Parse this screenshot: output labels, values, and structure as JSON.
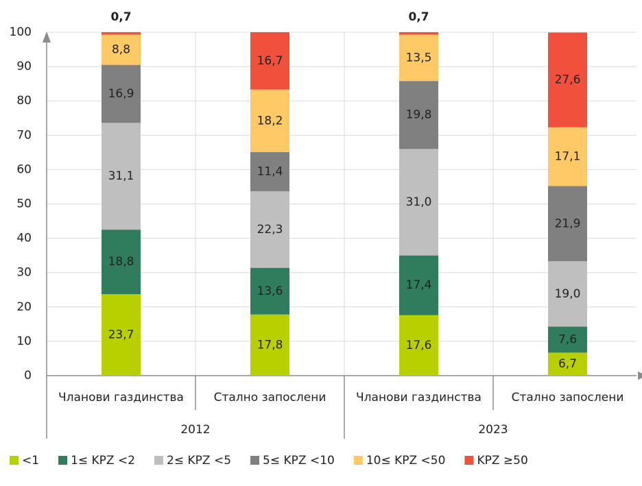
{
  "chart_data": {
    "type": "stacked_bar",
    "categories": [
      "Чланови газдинства",
      "Стално запослени",
      "Чланови газдинства",
      "Стално запослени"
    ],
    "groups": [
      "2012",
      "2023"
    ],
    "ylim": [
      0,
      100
    ],
    "yticks": [
      0,
      10,
      20,
      30,
      40,
      50,
      60,
      70,
      80,
      90,
      100
    ],
    "grid": true,
    "series": [
      {
        "name": "<1",
        "color": "#b8cf00",
        "values": [
          23.7,
          17.8,
          17.6,
          6.7
        ],
        "value_labels": [
          "23,7",
          "17,8",
          "17,6",
          "6,7"
        ]
      },
      {
        "name": "1≤ KPZ <2",
        "color": "#2f7d5c",
        "values": [
          18.8,
          13.6,
          17.4,
          7.6
        ],
        "value_labels": [
          "18,8",
          "13,6",
          "17,4",
          "7,6"
        ]
      },
      {
        "name": "2≤ KPZ <5",
        "color": "#bfbfbf",
        "values": [
          31.1,
          22.3,
          31.0,
          19.0
        ],
        "value_labels": [
          "31,1",
          "22,3",
          "31,0",
          "19,0"
        ]
      },
      {
        "name": "5≤ KPZ <10",
        "color": "#808080",
        "values": [
          16.9,
          11.4,
          19.8,
          21.9
        ],
        "value_labels": [
          "16,9",
          "11,4",
          "19,8",
          "21,9"
        ]
      },
      {
        "name": "10≤ KPZ <50",
        "color": "#ffc966",
        "values": [
          8.8,
          18.2,
          13.5,
          17.1
        ],
        "value_labels": [
          "8,8",
          "18,2",
          "13,5",
          "17,1"
        ]
      },
      {
        "name": "KPZ ≥50",
        "color": "#f0503c",
        "values": [
          0.7,
          16.7,
          0.7,
          27.6
        ],
        "value_labels": [
          "0,7",
          "16,7",
          "0,7",
          "27,6"
        ]
      }
    ],
    "legend": "bottom"
  }
}
